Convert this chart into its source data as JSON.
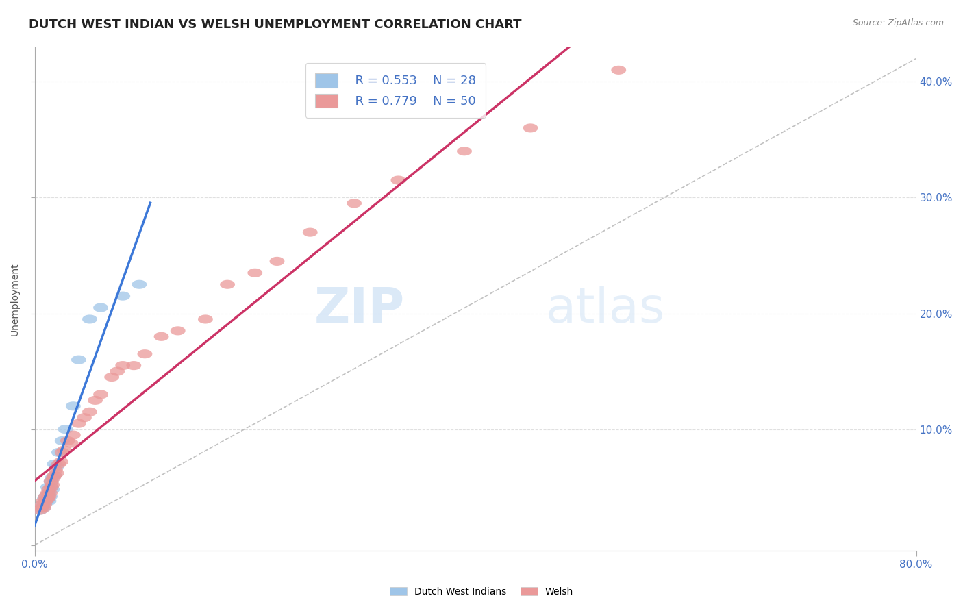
{
  "title": "DUTCH WEST INDIAN VS WELSH UNEMPLOYMENT CORRELATION CHART",
  "source_text": "Source: ZipAtlas.com",
  "ylabel": "Unemployment",
  "xlim": [
    0.0,
    0.8
  ],
  "ylim": [
    -0.005,
    0.43
  ],
  "xtick_positions": [
    0.0,
    0.8
  ],
  "xticklabels": [
    "0.0%",
    "80.0%"
  ],
  "ytick_positions": [
    0.0,
    0.1,
    0.2,
    0.3,
    0.4
  ],
  "yticklabels_right": [
    "",
    "10.0%",
    "20.0%",
    "30.0%",
    "40.0%"
  ],
  "dutch_color": "#9fc5e8",
  "welsh_color": "#ea9999",
  "dutch_line_color": "#3c78d8",
  "welsh_line_color": "#cc3366",
  "ref_line_color": "#bbbbbb",
  "legend_R1": "R = 0.553",
  "legend_N1": "N = 28",
  "legend_R2": "R = 0.779",
  "legend_N2": "N = 50",
  "dutch_x": [
    0.005,
    0.007,
    0.008,
    0.009,
    0.01,
    0.01,
    0.011,
    0.012,
    0.012,
    0.013,
    0.013,
    0.014,
    0.015,
    0.015,
    0.016,
    0.016,
    0.018,
    0.018,
    0.02,
    0.022,
    0.025,
    0.028,
    0.035,
    0.04,
    0.05,
    0.06,
    0.08,
    0.095
  ],
  "dutch_y": [
    0.03,
    0.035,
    0.032,
    0.04,
    0.038,
    0.042,
    0.038,
    0.04,
    0.05,
    0.038,
    0.045,
    0.042,
    0.05,
    0.055,
    0.048,
    0.058,
    0.06,
    0.07,
    0.068,
    0.08,
    0.09,
    0.1,
    0.12,
    0.16,
    0.195,
    0.205,
    0.215,
    0.225
  ],
  "welsh_x": [
    0.005,
    0.006,
    0.007,
    0.008,
    0.008,
    0.009,
    0.01,
    0.01,
    0.011,
    0.012,
    0.012,
    0.013,
    0.013,
    0.014,
    0.015,
    0.015,
    0.016,
    0.017,
    0.018,
    0.019,
    0.02,
    0.022,
    0.024,
    0.025,
    0.027,
    0.03,
    0.033,
    0.035,
    0.04,
    0.045,
    0.05,
    0.055,
    0.06,
    0.07,
    0.075,
    0.08,
    0.09,
    0.1,
    0.115,
    0.13,
    0.155,
    0.175,
    0.2,
    0.22,
    0.25,
    0.29,
    0.33,
    0.39,
    0.45,
    0.53
  ],
  "welsh_y": [
    0.03,
    0.032,
    0.035,
    0.032,
    0.038,
    0.035,
    0.038,
    0.042,
    0.04,
    0.04,
    0.045,
    0.042,
    0.048,
    0.045,
    0.05,
    0.055,
    0.052,
    0.058,
    0.06,
    0.065,
    0.062,
    0.07,
    0.072,
    0.08,
    0.082,
    0.09,
    0.088,
    0.095,
    0.105,
    0.11,
    0.115,
    0.125,
    0.13,
    0.145,
    0.15,
    0.155,
    0.155,
    0.165,
    0.18,
    0.185,
    0.195,
    0.225,
    0.235,
    0.245,
    0.27,
    0.295,
    0.315,
    0.34,
    0.36,
    0.41
  ],
  "background_color": "#ffffff",
  "grid_color": "#e0e0e0",
  "title_fontsize": 13,
  "axis_label_fontsize": 10,
  "tick_fontsize": 11,
  "legend_fontsize": 13,
  "watermark_zip": "ZIP",
  "watermark_atlas": "atlas"
}
